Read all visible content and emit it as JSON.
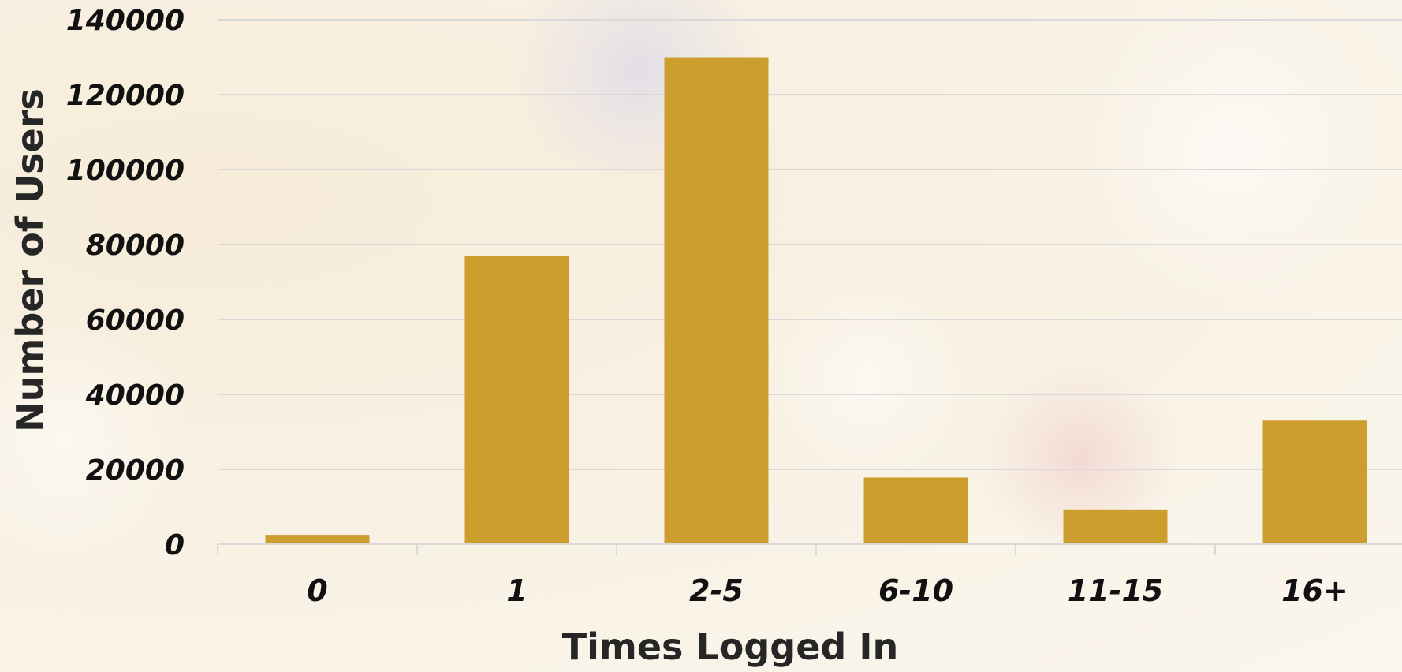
{
  "chart_data": {
    "type": "bar",
    "title": "",
    "xlabel": "Times Logged In",
    "ylabel": "Number of Users",
    "categories": [
      "0",
      "1",
      "2-5",
      "6-10",
      "11-15",
      "16+"
    ],
    "values": [
      2500,
      77000,
      130000,
      17800,
      9300,
      33000
    ],
    "ylim": [
      0,
      140000
    ],
    "yticks": [
      "0",
      "20000",
      "40000",
      "60000",
      "80000",
      "100000",
      "120000",
      "140000"
    ],
    "grid": true,
    "legend": "none",
    "bar_color": "#CC9E2E",
    "grid_color": "#D9D9D9"
  }
}
